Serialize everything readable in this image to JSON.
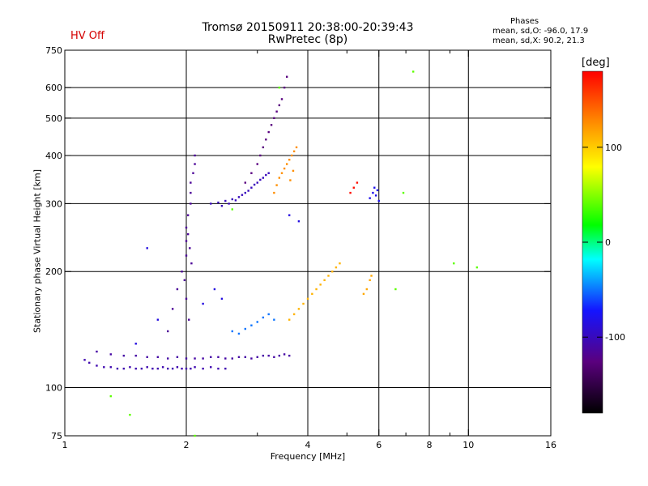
{
  "header": {
    "title_line1": "Tromsø 20150911 20:38:00-20:39:43",
    "title_line2": "RwPretec (8p)",
    "hv_status": "HV Off",
    "phases_title": "Phases",
    "phases_o": "mean, sd,O: -96.0, 17.9",
    "phases_x": "mean, sd,X:  90.2, 21.3"
  },
  "colorbar": {
    "unit": "[deg]",
    "ticks": [
      {
        "value": 100,
        "label": "100"
      },
      {
        "value": 0,
        "label": "0"
      },
      {
        "value": -100,
        "label": "-100"
      }
    ],
    "min": -180,
    "max": 180,
    "colors": [
      "#000000",
      "#5a007e",
      "#1414ff",
      "#00ffff",
      "#00ff00",
      "#ffff00",
      "#ff8c00",
      "#ff0000"
    ]
  },
  "chart_data": {
    "type": "scatter",
    "title": "Tromsø 20150911 20:38:00-20:39:43",
    "subtitle": "RwPretec (8p)",
    "xlabel": "Frequency [MHz]",
    "ylabel": "Stationary phase Virtual Height [km]",
    "x_scale": "log",
    "y_scale": "log",
    "xlim": [
      1,
      16
    ],
    "ylim": [
      75,
      750
    ],
    "x_ticks": [
      {
        "value": 1,
        "label": "1"
      },
      {
        "value": 2,
        "label": "2"
      },
      {
        "value": 4,
        "label": "4"
      },
      {
        "value": 6,
        "label": "6"
      },
      {
        "value": 8,
        "label": "8"
      },
      {
        "value": 10,
        "label": "10"
      },
      {
        "value": 16,
        "label": "16"
      }
    ],
    "x_minor": [
      3,
      5,
      7,
      9
    ],
    "y_ticks": [
      {
        "value": 75,
        "label": "75"
      },
      {
        "value": 100,
        "label": "100"
      },
      {
        "value": 200,
        "label": "200"
      },
      {
        "value": 300,
        "label": "300"
      },
      {
        "value": 400,
        "label": "400"
      },
      {
        "value": 500,
        "label": "500"
      },
      {
        "value": 600,
        "label": "600"
      },
      {
        "value": 750,
        "label": "750"
      }
    ],
    "grid_x": [
      2,
      4,
      6,
      8,
      10
    ],
    "grid_y": [
      100,
      200,
      300,
      400,
      500,
      600
    ],
    "grid": true,
    "color_metric": "phase [deg]",
    "series": [
      {
        "x": [
          1.12,
          1.15,
          1.2,
          1.25,
          1.3,
          1.35,
          1.4,
          1.45,
          1.5,
          1.55,
          1.6,
          1.65,
          1.7,
          1.75,
          1.8,
          1.85,
          1.9,
          1.95,
          2.0,
          2.05,
          2.1,
          2.2,
          2.3,
          2.4,
          2.5
        ],
        "y": [
          118,
          116,
          114,
          113,
          113,
          112,
          112,
          113,
          112,
          112,
          113,
          112,
          112,
          113,
          112,
          112,
          113,
          112,
          112,
          112,
          113,
          112,
          113,
          112,
          112
        ],
        "phase": -105
      },
      {
        "x": [
          1.2,
          1.3,
          1.4,
          1.5,
          1.6,
          1.7,
          1.8,
          1.9,
          2.0,
          2.1,
          2.2,
          2.3,
          2.4,
          2.5,
          2.6,
          2.7,
          2.8,
          2.9,
          3.0,
          3.1,
          3.2,
          3.3,
          3.4,
          3.5,
          3.6
        ],
        "y": [
          124,
          122,
          121,
          121,
          120,
          120,
          119,
          120,
          119,
          119,
          119,
          120,
          120,
          119,
          119,
          120,
          120,
          119,
          120,
          121,
          121,
          120,
          121,
          122,
          121
        ],
        "phase": -110
      },
      {
        "x": [
          1.8,
          1.85,
          1.9,
          1.95,
          2.0,
          2.0,
          2.0,
          2.02,
          2.05,
          2.05,
          2.05,
          2.08,
          2.1,
          2.1,
          2.02,
          2.04,
          2.06,
          1.98,
          2.0,
          2.03
        ],
        "y": [
          140,
          160,
          180,
          200,
          220,
          240,
          260,
          280,
          300,
          320,
          340,
          360,
          380,
          400,
          250,
          230,
          210,
          190,
          170,
          150
        ],
        "phase": -115
      },
      {
        "x": [
          2.3,
          2.4,
          2.5,
          2.6,
          2.7,
          2.8,
          2.9,
          3.0,
          3.1,
          3.2,
          2.45,
          2.55,
          2.65,
          2.75,
          2.85,
          2.95,
          3.05,
          3.15
        ],
        "y": [
          300,
          302,
          305,
          308,
          312,
          320,
          330,
          340,
          350,
          360,
          296,
          300,
          306,
          316,
          324,
          336,
          346,
          356
        ],
        "phase": -100
      },
      {
        "x": [
          2.8,
          2.9,
          3.0,
          3.05,
          3.1,
          3.15,
          3.2,
          3.25,
          3.3,
          3.35,
          3.4,
          3.45,
          3.5,
          3.55
        ],
        "y": [
          340,
          360,
          380,
          400,
          420,
          440,
          460,
          480,
          500,
          520,
          540,
          560,
          600,
          640
        ],
        "phase": -125
      },
      {
        "x": [
          3.3,
          3.35,
          3.4,
          3.45,
          3.5,
          3.55,
          3.6,
          3.65,
          3.7,
          3.75,
          3.62,
          3.68
        ],
        "y": [
          320,
          335,
          350,
          360,
          370,
          380,
          390,
          400,
          410,
          420,
          345,
          365
        ],
        "phase": 125
      },
      {
        "x": [
          3.6,
          3.7,
          3.8,
          3.9,
          4.0,
          4.1,
          4.2,
          4.3,
          4.4,
          4.5,
          4.6,
          4.7,
          4.8
        ],
        "y": [
          150,
          155,
          160,
          165,
          170,
          175,
          180,
          185,
          190,
          195,
          200,
          205,
          210
        ],
        "phase": 110
      },
      {
        "x": [
          2.6,
          2.7,
          2.8,
          2.9,
          3.0,
          3.1,
          3.2,
          3.3
        ],
        "y": [
          140,
          138,
          142,
          145,
          148,
          152,
          155,
          150
        ],
        "phase": -50
      },
      {
        "x": [
          5.7,
          5.8,
          5.85,
          5.9,
          5.95,
          6.0
        ],
        "y": [
          310,
          320,
          330,
          315,
          325,
          305
        ],
        "phase": -80
      },
      {
        "x": [
          5.5,
          5.6,
          5.7,
          5.75
        ],
        "y": [
          175,
          180,
          190,
          195
        ],
        "phase": 115
      },
      {
        "x": [
          5.1,
          5.2,
          5.3
        ],
        "y": [
          320,
          330,
          340
        ],
        "phase": 175
      },
      {
        "x": [
          1.5,
          1.6,
          1.7,
          2.2,
          2.35,
          2.45,
          3.6,
          3.8
        ],
        "y": [
          130,
          230,
          150,
          165,
          180,
          170,
          280,
          270
        ],
        "phase": -85
      },
      {
        "x": [
          1.3,
          1.45,
          2.1,
          2.6,
          3.4,
          6.6,
          6.9,
          7.3,
          9.2,
          10.5
        ],
        "y": [
          95,
          85,
          75,
          290,
          600,
          180,
          320,
          660,
          210,
          205
        ],
        "phase": 40
      }
    ]
  }
}
